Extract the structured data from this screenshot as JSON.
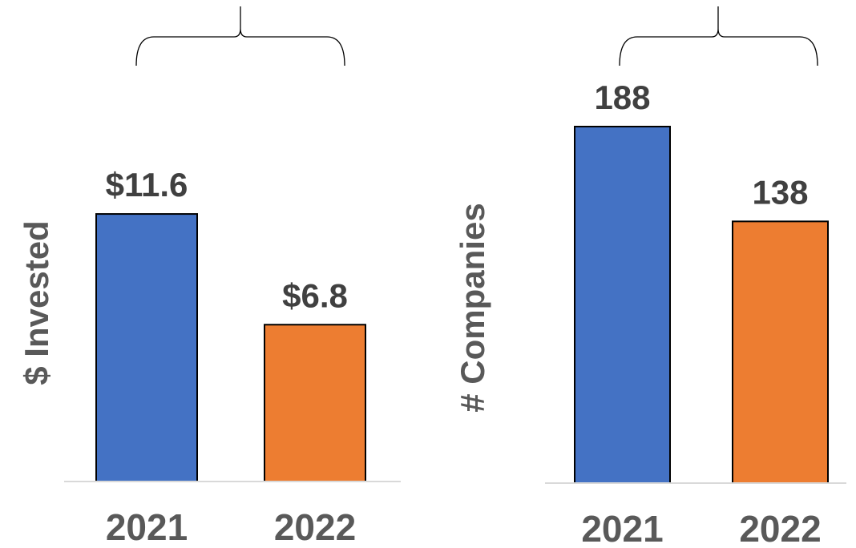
{
  "colors": {
    "bar_2021": "#4472C4",
    "bar_2022": "#ED7D31",
    "bar_outline": "#000000",
    "text_dark": "#404040",
    "text_axis": "#595959",
    "axis_line": "#D9D9D9",
    "bracket": "#000000"
  },
  "chart_data": [
    {
      "type": "bar",
      "categories": [
        "2021",
        "2022"
      ],
      "values": [
        11.6,
        6.8
      ],
      "data_labels": [
        "$11.6",
        "$6.8"
      ],
      "ylabel": "$ Invested",
      "xlabel": "",
      "title": "",
      "ylim": [
        0,
        14
      ],
      "grid": false,
      "legend": "none",
      "bracket": true
    },
    {
      "type": "bar",
      "categories": [
        "2021",
        "2022"
      ],
      "values": [
        188,
        138
      ],
      "data_labels": [
        "188",
        "138"
      ],
      "ylabel": "# Companies",
      "xlabel": "",
      "title": "",
      "ylim": [
        0,
        188
      ],
      "grid": false,
      "legend": "none",
      "bracket": true
    }
  ]
}
